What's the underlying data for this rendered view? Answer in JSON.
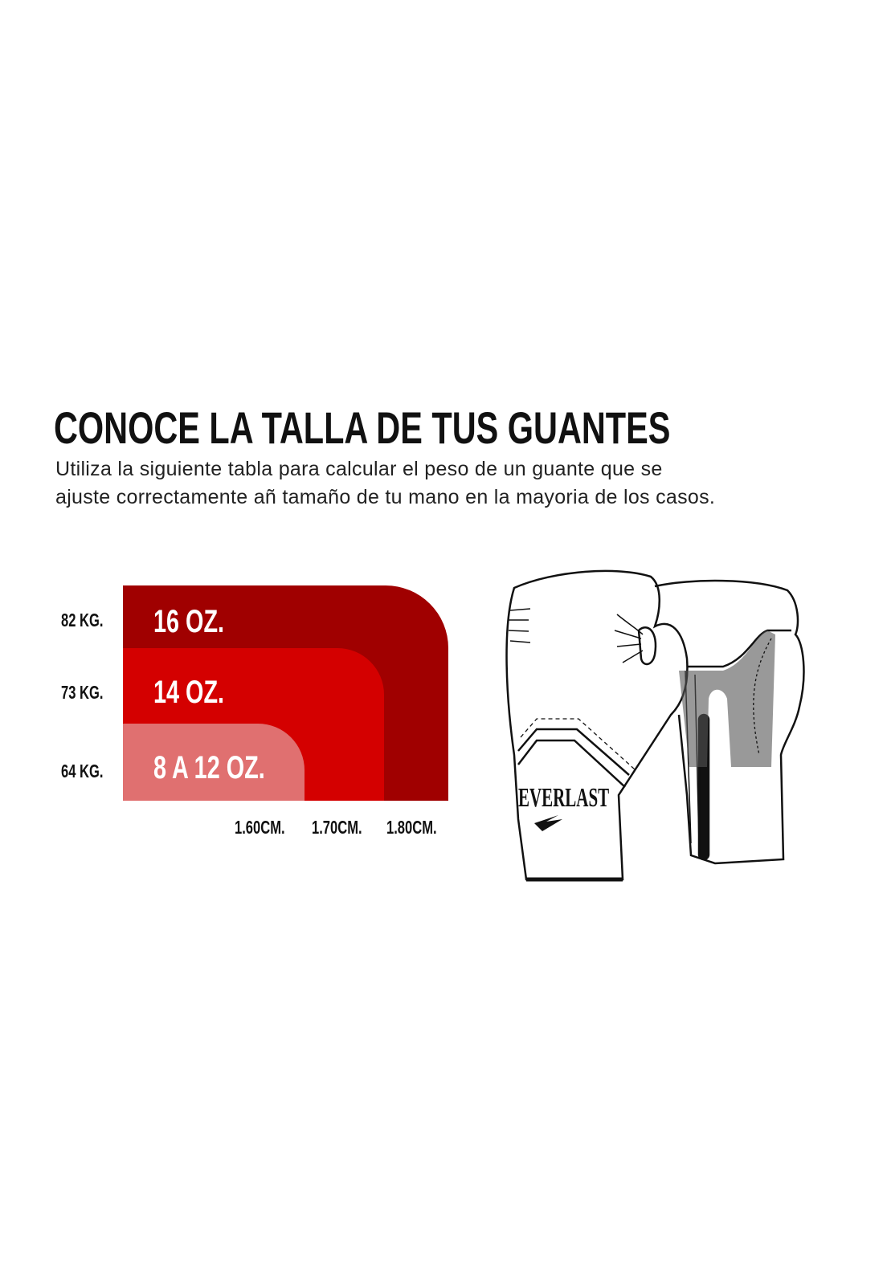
{
  "header": {
    "title": "CONOCE LA TALLA DE TUS GUANTES",
    "subtitle_line1": "Utiliza la siguiente tabla para calcular el peso de un guante que se",
    "subtitle_line2": "ajuste correctamente añ tamaño de tu mano en la mayoria de los casos."
  },
  "colors": {
    "size_16": "#a00000",
    "size_14": "#d40000",
    "size_8_12": "#e07070"
  },
  "chart_data": {
    "type": "area",
    "y_tick_labels": [
      "82 KG.",
      "73 KG.",
      "64 KG."
    ],
    "x_tick_labels": [
      "1.60CM.",
      "1.70CM.",
      "1.80CM."
    ],
    "regions": [
      {
        "label": "16 OZ.",
        "max_weight": "82 KG.",
        "max_height": "1.80CM."
      },
      {
        "label": "14 OZ.",
        "max_weight": "73 KG.",
        "max_height": "1.70CM."
      },
      {
        "label": "8 A 12 OZ.",
        "max_weight": "64 KG.",
        "max_height": "1.60CM."
      }
    ]
  },
  "illustration": {
    "brand_logo": "EVERLAST",
    "icon": "boxing-gloves-illustration"
  }
}
